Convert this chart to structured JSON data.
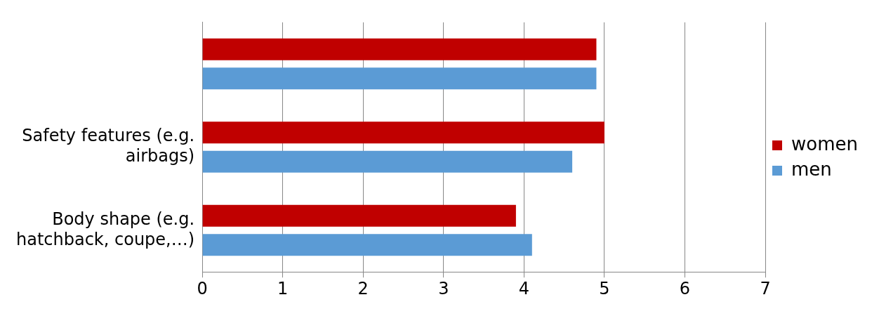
{
  "chart_data": {
    "type": "bar",
    "orientation": "horizontal",
    "categories": [
      null,
      "Safety features (e.g. airbags)",
      "Body shape (e.g. hatchback, coupe,…)"
    ],
    "series": [
      {
        "name": "women",
        "color": "#c00000",
        "values": [
          4.9,
          5.0,
          3.9
        ]
      },
      {
        "name": "men",
        "color": "#5b9bd5",
        "values": [
          4.9,
          4.6,
          4.1
        ]
      }
    ],
    "xlim": [
      0,
      7
    ],
    "xticks": [
      0,
      1,
      2,
      3,
      4,
      5,
      6,
      7
    ],
    "grid": "x",
    "legend": "right"
  }
}
